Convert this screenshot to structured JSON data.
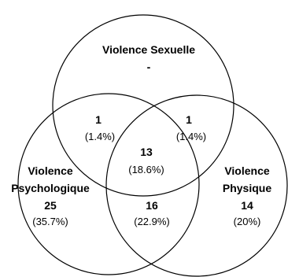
{
  "sets": {
    "sexuelle": {
      "name": "Violence Sexuelle",
      "only_value": "-"
    },
    "psychologique": {
      "name_line1": "Violence",
      "name_line2": "Psychologique",
      "only_value": "25",
      "only_pct": "(35.7%)"
    },
    "physique": {
      "name_line1": "Violence",
      "name_line2": "Physique",
      "only_value": "14",
      "only_pct": "(20%)"
    }
  },
  "intersections": {
    "sexuelle_psychologique": {
      "value": "1",
      "pct": "(1.4%)"
    },
    "sexuelle_physique": {
      "value": "1",
      "pct": "(1.4%)"
    },
    "all_three": {
      "value": "13",
      "pct": "(18.6%)"
    },
    "psychologique_physique": {
      "value": "16",
      "pct": "(22.9%)"
    }
  }
}
